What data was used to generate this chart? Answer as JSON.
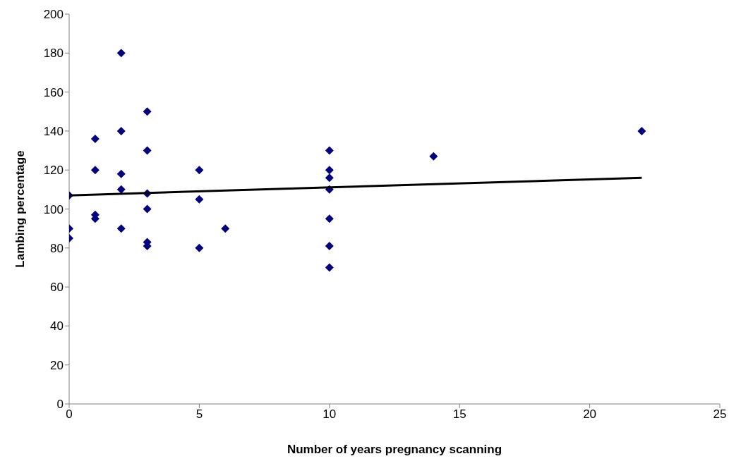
{
  "chart_data": {
    "type": "scatter",
    "xlabel": "Number of years pregnancy scanning",
    "ylabel": "Lambing percentage",
    "xlim": [
      0,
      25
    ],
    "xticks": [
      0,
      5,
      10,
      15,
      20,
      25
    ],
    "ylim": [
      0,
      200
    ],
    "yticks": [
      0,
      20,
      40,
      60,
      80,
      100,
      120,
      140,
      160,
      180,
      200
    ],
    "grid": false,
    "legend": false,
    "marker": "diamond",
    "series": [
      {
        "color": "#000080",
        "x": [
          0,
          0,
          0,
          1,
          1,
          1,
          1,
          2,
          2,
          2,
          2,
          2,
          3,
          3,
          3,
          3,
          3,
          3,
          5,
          5,
          5,
          6,
          10,
          10,
          10,
          10,
          10,
          10,
          10,
          14,
          22
        ],
        "values": [
          107,
          90,
          85,
          136,
          120,
          97,
          95,
          180,
          140,
          118,
          110,
          90,
          150,
          130,
          108,
          100,
          83,
          81,
          120,
          105,
          80,
          90,
          130,
          120,
          116,
          110,
          95,
          81,
          70,
          127,
          140
        ]
      },
      {
        "type": "line",
        "color": "#000000",
        "x": [
          0,
          22
        ],
        "values": [
          107,
          116
        ],
        "marker": "none",
        "line_style": "solid"
      }
    ]
  }
}
